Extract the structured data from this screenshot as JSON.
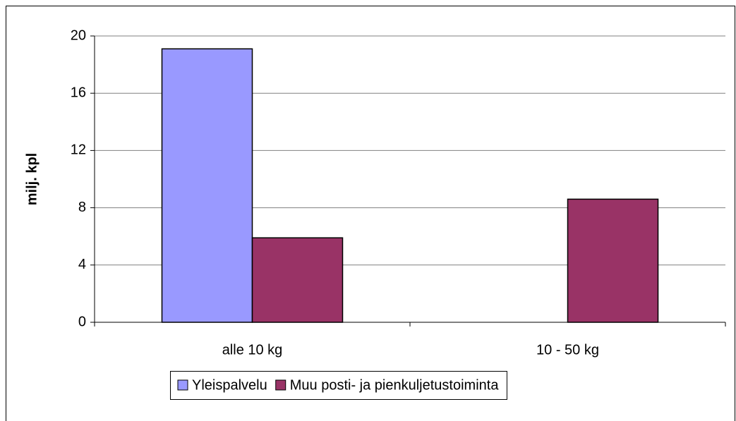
{
  "chart_data": {
    "type": "bar",
    "y_label": "milj. kpl",
    "categories": [
      "alle 10 kg",
      "10 - 50 kg"
    ],
    "series": [
      {
        "name": "Yleispalvelu",
        "color": "#9999ff",
        "values": [
          19.1,
          0
        ]
      },
      {
        "name": "Muu posti- ja pienkuljetustoiminta",
        "color": "#993366",
        "values": [
          5.9,
          8.6
        ]
      }
    ],
    "ylim": [
      0,
      20
    ],
    "yticks": [
      0,
      4,
      8,
      12,
      16,
      20
    ],
    "grid": true,
    "legend": "bottom"
  }
}
